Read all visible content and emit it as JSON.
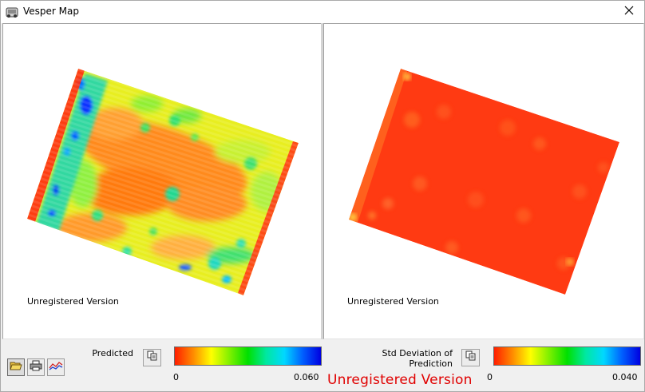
{
  "window": {
    "title": "Vesper Map"
  },
  "left_panel": {
    "watermark": "Unregistered Version"
  },
  "right_panel": {
    "watermark": "Unregistered Version"
  },
  "legend_left": {
    "label": "Predicted",
    "min": "0",
    "max": "0.060",
    "gradient": [
      "#ff1e00",
      "#ff8a00",
      "#ffff00",
      "#7ff000",
      "#00e000",
      "#00e8a0",
      "#00d8ff",
      "#0060ff",
      "#0000e0"
    ]
  },
  "legend_right": {
    "label_line1": "Std Deviation of",
    "label_line2": "Prediction",
    "min": "0",
    "max": "0.040",
    "gradient": [
      "#ff1e00",
      "#ff8a00",
      "#ffff00",
      "#7ff000",
      "#00e000",
      "#00e8a0",
      "#00d8ff",
      "#0060ff",
      "#0000e0"
    ]
  },
  "footer": {
    "watermark": "Unregistered Version"
  },
  "icons": [
    "app-icon",
    "close-icon",
    "open-folder-icon",
    "print-icon",
    "graph-icon",
    "copy-icon"
  ]
}
